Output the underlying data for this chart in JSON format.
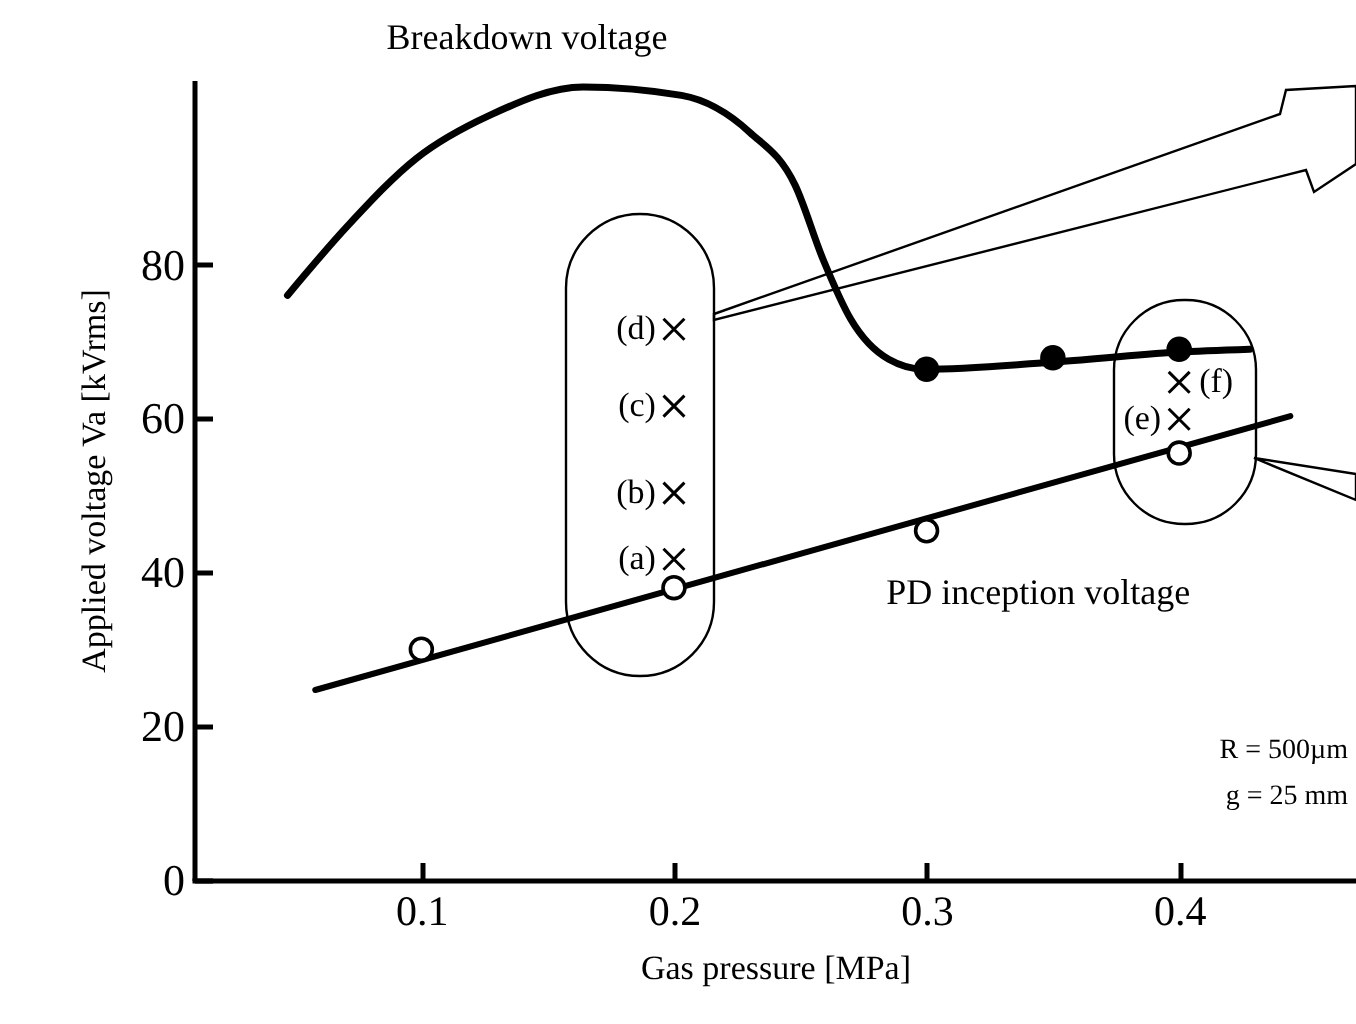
{
  "chart_data": {
    "type": "line",
    "xlabel": "Gas pressure [MPa]",
    "ylabel": "Applied voltage Va [kVrms]",
    "xlim": [
      0.01,
      0.47
    ],
    "xticks": [
      0.1,
      0.2,
      0.3,
      0.4
    ],
    "ylim": [
      0,
      104
    ],
    "yticks": [
      0,
      20,
      40,
      60,
      80
    ],
    "grid": false,
    "series": [
      {
        "name": "Breakdown voltage",
        "color": "#000000",
        "x": [
          0.047,
          0.071,
          0.098,
          0.127,
          0.164,
          0.203,
          0.23,
          0.248,
          0.259,
          0.27,
          0.285,
          0.299,
          0.349,
          0.399,
          0.428
        ],
        "values": [
          76.0,
          85.1,
          93.8,
          99.4,
          103.1,
          102.0,
          97.2,
          90.3,
          80.7,
          72.9,
          67.7,
          66.4,
          67.3,
          68.6,
          69.0
        ]
      },
      {
        "type": "scatter",
        "marker": "circle",
        "color": "#000000",
        "x": [
          0.3,
          0.35,
          0.4
        ],
        "values": [
          66.4,
          67.9,
          69.0
        ]
      },
      {
        "name": "PD inception voltage",
        "color": "#000000",
        "x": [
          0.058,
          0.444
        ],
        "values": [
          24.7,
          60.3
        ]
      },
      {
        "type": "scatter",
        "marker": "circle",
        "color": "#000000",
        "x": [
          0.1,
          0.2,
          0.3,
          0.4
        ],
        "values": [
          30.0,
          38.0,
          45.4,
          55.5
        ]
      },
      {
        "type": "scatter",
        "marker": "cross",
        "color": "#000000",
        "x": [
          0.2,
          0.2,
          0.2,
          0.2,
          0.4,
          0.4
        ],
        "values": [
          41.7,
          50.3,
          61.6,
          71.6,
          59.9,
          64.7
        ]
      }
    ],
    "annotations": [
      "(a)",
      "(b)",
      "(c)",
      "(d)",
      "(e)",
      "(f)",
      "R = 500µm",
      "g = 25 mm"
    ]
  }
}
